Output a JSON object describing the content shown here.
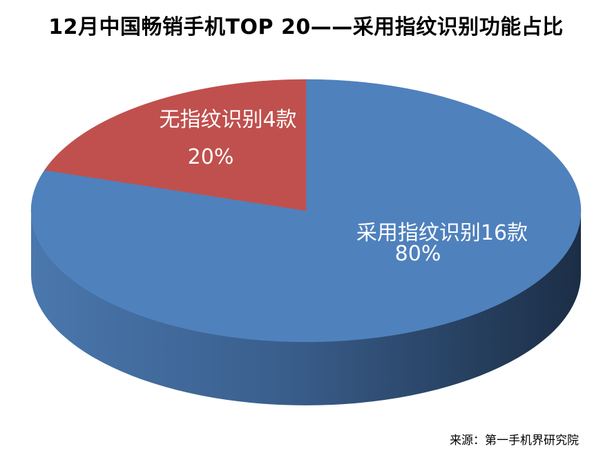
{
  "chart_data": {
    "type": "pie",
    "title": "12月中国畅销手机TOP 20——采用指纹识别功能占比",
    "slices": [
      {
        "label": "采用指纹识别16款",
        "value": 16,
        "percent": "80%",
        "color": "#4f81bd"
      },
      {
        "label": "无指纹识别4款",
        "value": 4,
        "percent": "20%",
        "color": "#c0504d"
      }
    ],
    "legend": "none",
    "style": "3d"
  },
  "source": "来源：第一手机界研究院"
}
